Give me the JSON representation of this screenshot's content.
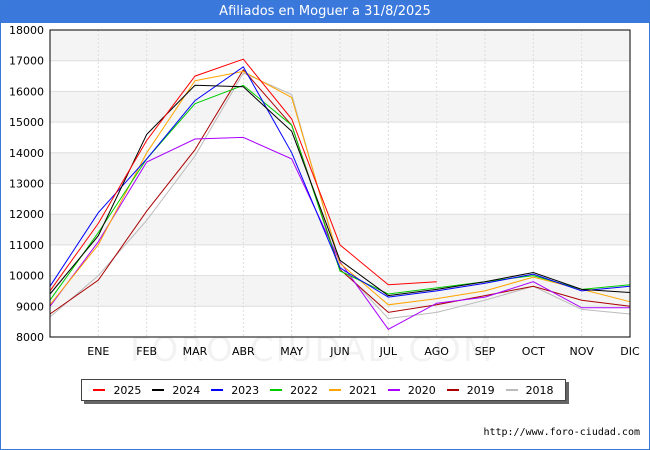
{
  "title": "Afiliados en Moguer a 31/8/2025",
  "source": "http://www.foro-ciudad.com",
  "watermark": "FORO-CIUDAD.COM",
  "chart_data": {
    "type": "line",
    "title": "Afiliados en Moguer a 31/8/2025",
    "xlabel": "",
    "ylabel": "",
    "categories": [
      "DIC",
      "ENE",
      "FEB",
      "MAR",
      "ABR",
      "MAY",
      "JUN",
      "JUL",
      "AGO",
      "SEP",
      "OCT",
      "NOV",
      "DIC"
    ],
    "tick_labels": [
      "",
      "ENE",
      "FEB",
      "MAR",
      "ABR",
      "MAY",
      "JUN",
      "JUL",
      "AGO",
      "SEP",
      "OCT",
      "NOV",
      "DIC"
    ],
    "ylim": [
      8000,
      18000
    ],
    "yticks": [
      8000,
      9000,
      10000,
      11000,
      12000,
      13000,
      14000,
      15000,
      16000,
      17000,
      18000
    ],
    "grid": true,
    "legend_position": "bottom",
    "series": [
      {
        "name": "2025",
        "color": "#ff0000",
        "values": [
          9500,
          11700,
          14400,
          16500,
          17050,
          15100,
          11000,
          9700,
          9800,
          null,
          null,
          null,
          null
        ]
      },
      {
        "name": "2024",
        "color": "#000000",
        "values": [
          9400,
          11300,
          14600,
          16200,
          16150,
          14700,
          10500,
          9350,
          9550,
          9800,
          10100,
          9550,
          9450
        ]
      },
      {
        "name": "2023",
        "color": "#0000ff",
        "values": [
          9650,
          12050,
          13800,
          15700,
          16800,
          14000,
          10250,
          9300,
          9500,
          9750,
          10050,
          9500,
          9650
        ]
      },
      {
        "name": "2022",
        "color": "#00cc00",
        "values": [
          9200,
          11400,
          13800,
          15600,
          16200,
          14900,
          10150,
          9400,
          9600,
          9800,
          10000,
          9550,
          9700
        ]
      },
      {
        "name": "2021",
        "color": "#ffa500",
        "values": [
          9050,
          11000,
          14000,
          16350,
          16650,
          15800,
          10400,
          9050,
          9250,
          9500,
          9950,
          9550,
          9150
        ]
      },
      {
        "name": "2020",
        "color": "#aa00ff",
        "values": [
          9000,
          11100,
          13700,
          14450,
          14500,
          13800,
          10450,
          8250,
          9100,
          9300,
          9800,
          8950,
          8950
        ]
      },
      {
        "name": "2019",
        "color": "#aa0000",
        "values": [
          8750,
          9850,
          12100,
          14100,
          16700,
          14900,
          10200,
          8800,
          9050,
          9350,
          9650,
          9200,
          9000
        ]
      },
      {
        "name": "2018",
        "color": "#bbbbbb",
        "values": [
          8650,
          10000,
          11800,
          13900,
          16600,
          15900,
          10300,
          8600,
          8800,
          9200,
          9650,
          8900,
          8750
        ]
      }
    ]
  }
}
